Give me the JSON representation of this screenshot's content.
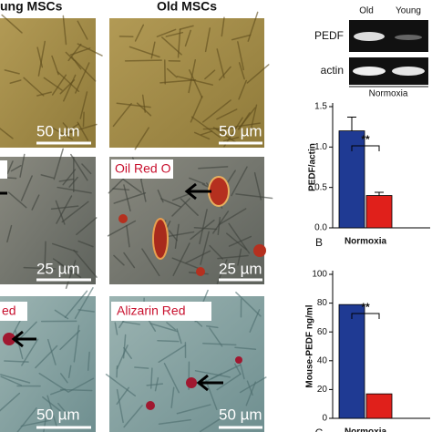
{
  "panels": {
    "header_young": "ung MSCs",
    "header_old": "Old MSCs",
    "row1": {
      "left_scale": "50 µm",
      "right_scale": "50 µm"
    },
    "row2": {
      "right_label": "Oil Red O",
      "left_scale": "25 µm",
      "right_scale": "25 µm"
    },
    "row3": {
      "left_label": "ed",
      "right_label": "Alizarin Red",
      "left_scale": "50 µm",
      "right_scale": "50 µm"
    }
  },
  "gel": {
    "lanes": [
      "Old",
      "Young"
    ],
    "rows": [
      "PEDF",
      "actin"
    ],
    "condition": "Normoxia"
  },
  "chart_data": [
    {
      "type": "bar",
      "panel_label": "B",
      "y_label": "PEDF/actin",
      "categories": [
        "Normoxia"
      ],
      "series": [
        {
          "color": "#1f3a93",
          "values": [
            1.2
          ],
          "errors": [
            0.17
          ]
        },
        {
          "color": "#e0201b",
          "values": [
            0.4
          ],
          "errors": [
            0.04
          ]
        }
      ],
      "ylim": [
        0,
        1.5
      ],
      "yticks": [
        {
          "value": 0,
          "label": "0.0"
        },
        0.5,
        {
          "value": 1,
          "label": "1.0"
        },
        1.5
      ],
      "annotation": "**"
    },
    {
      "type": "bar",
      "panel_label": "C",
      "y_label": "Mouse-PEDF ng/ml",
      "categories": [
        "Normoxia"
      ],
      "series": [
        {
          "color": "#1f3a93",
          "values": [
            79
          ]
        },
        {
          "color": "#e0201b",
          "values": [
            17
          ]
        }
      ],
      "ylim": [
        0,
        100
      ],
      "yticks": [
        0,
        20,
        40,
        60,
        80,
        100
      ],
      "annotation": "**"
    }
  ]
}
